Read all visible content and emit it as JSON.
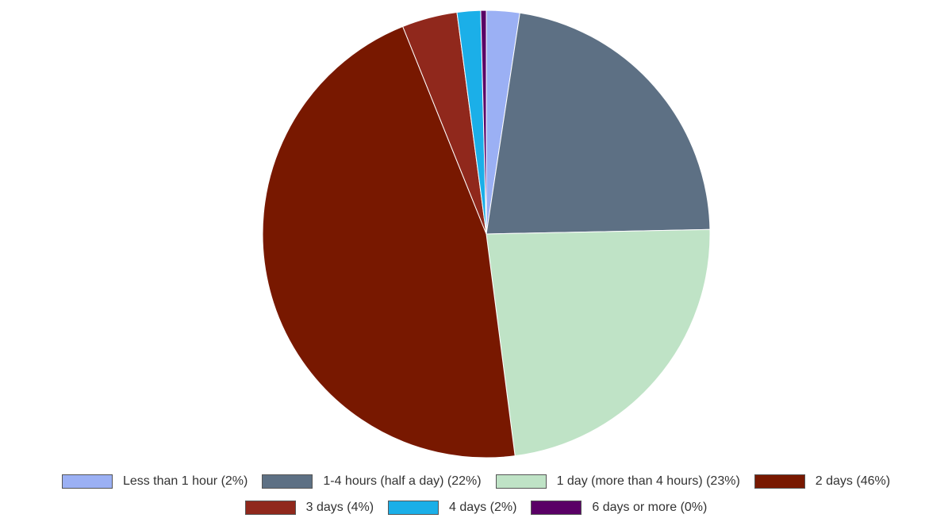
{
  "chart_data": {
    "type": "pie",
    "title": "",
    "labels": [
      "Less than 1 hour (2%)",
      "1-4 hours (half a day) (22%)",
      "1 day (more than 4 hours) (23%)",
      "2 days (46%)",
      "3 days (4%)",
      "4 days (2%)",
      "6 days or more (0%)"
    ],
    "values": [
      2.4,
      22.3,
      23.3,
      46.0,
      4.0,
      1.7,
      0.4
    ],
    "colors": [
      "#9bb0f4",
      "#5d7084",
      "#bfe3c6",
      "#781800",
      "#90281c",
      "#1bafe8",
      "#5a0066"
    ],
    "start_angle_deg": 0,
    "direction": "clockwise",
    "legend_position": "bottom"
  }
}
